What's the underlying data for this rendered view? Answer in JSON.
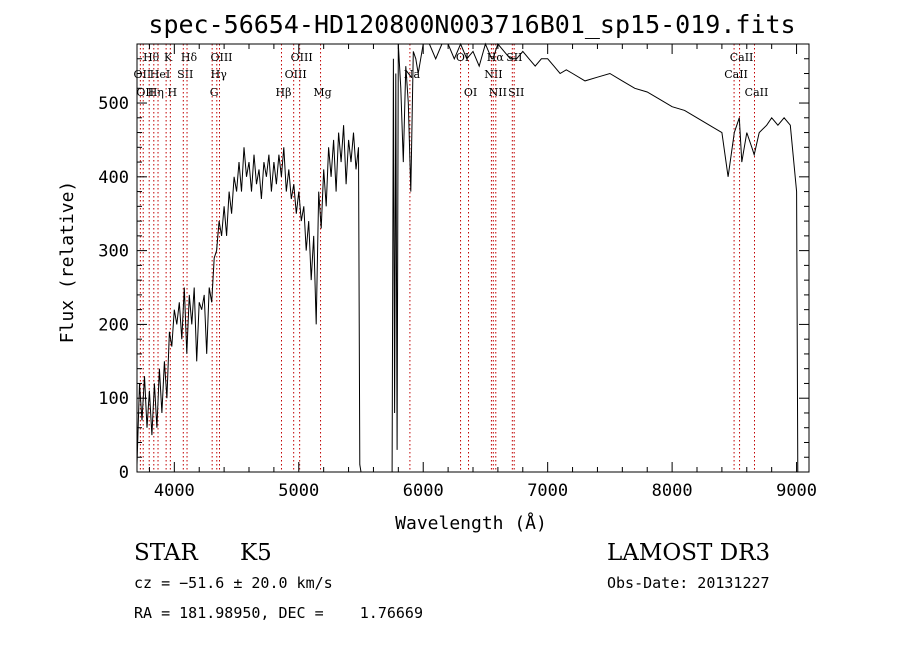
{
  "chart_data": {
    "type": "line",
    "title": "spec-56654-HD120800N003716B01_sp15-019.fits",
    "xlabel": "Wavelength (Å)",
    "ylabel": "Flux (relative)",
    "xlim": [
      3700,
      9100
    ],
    "ylim": [
      0,
      580
    ],
    "x_ticks": [
      4000,
      5000,
      6000,
      7000,
      8000,
      9000
    ],
    "y_ticks": [
      0,
      100,
      200,
      300,
      400,
      500
    ],
    "grid": false,
    "series": [
      {
        "x": [
          3700,
          3720,
          3740,
          3760,
          3780,
          3800,
          3820,
          3840,
          3860,
          3880,
          3900,
          3920,
          3940,
          3960,
          3980,
          4000,
          4020,
          4040,
          4060,
          4080,
          4100,
          4120,
          4140,
          4160,
          4180,
          4200,
          4220,
          4240,
          4260,
          4280,
          4300,
          4320,
          4340,
          4360,
          4380,
          4400,
          4420,
          4440,
          4460,
          4480,
          4500,
          4520,
          4540,
          4560,
          4580,
          4600,
          4620,
          4640,
          4660,
          4680,
          4700,
          4720,
          4740,
          4760,
          4780,
          4800,
          4820,
          4840,
          4860,
          4880,
          4900,
          4920,
          4940,
          4960,
          4980,
          5000,
          5020,
          5040,
          5060,
          5080,
          5100,
          5120,
          5140,
          5160,
          5180,
          5200,
          5220,
          5240,
          5260,
          5280,
          5300,
          5320,
          5340,
          5360,
          5380,
          5400,
          5420,
          5440,
          5460,
          5480,
          5490,
          5500,
          5750,
          5760,
          5770,
          5780,
          5790,
          5800,
          5820,
          5840,
          5860,
          5880,
          5900,
          5920,
          5940,
          5960,
          5980,
          6000,
          6050,
          6100,
          6150,
          6200,
          6250,
          6300,
          6350,
          6400,
          6450,
          6500,
          6550,
          6560,
          6600,
          6650,
          6700,
          6750,
          6800,
          6850,
          6900,
          6950,
          7000,
          7050,
          7100,
          7150,
          7200,
          7300,
          7400,
          7500,
          7600,
          7700,
          7800,
          7900,
          8000,
          8100,
          8200,
          8300,
          8400,
          8450,
          8500,
          8540,
          8560,
          8600,
          8640,
          8660,
          8700,
          8760,
          8800,
          8850,
          8900,
          8950,
          9000,
          9010
        ],
        "values": [
          10,
          120,
          70,
          130,
          60,
          110,
          50,
          120,
          60,
          140,
          80,
          150,
          100,
          190,
          170,
          220,
          200,
          230,
          180,
          250,
          160,
          240,
          200,
          250,
          150,
          230,
          220,
          240,
          160,
          250,
          230,
          290,
          300,
          340,
          320,
          360,
          320,
          380,
          350,
          400,
          380,
          420,
          380,
          440,
          400,
          420,
          380,
          430,
          390,
          410,
          370,
          420,
          400,
          430,
          380,
          420,
          390,
          430,
          400,
          440,
          380,
          410,
          370,
          390,
          350,
          380,
          340,
          360,
          300,
          340,
          260,
          320,
          200,
          380,
          330,
          410,
          360,
          440,
          400,
          450,
          380,
          460,
          420,
          470,
          390,
          450,
          420,
          460,
          410,
          440,
          10,
          0,
          0,
          560,
          80,
          540,
          30,
          580,
          520,
          420,
          550,
          500,
          380,
          570,
          560,
          540,
          560,
          580,
          600,
          560,
          580,
          590,
          560,
          580,
          560,
          570,
          550,
          590,
          560,
          560,
          580,
          570,
          560,
          560,
          570,
          560,
          550,
          560,
          560,
          550,
          540,
          545,
          540,
          530,
          535,
          540,
          530,
          520,
          515,
          505,
          495,
          490,
          480,
          470,
          460,
          400,
          460,
          480,
          420,
          460,
          440,
          430,
          460,
          470,
          480,
          470,
          480,
          470,
          380,
          0
        ]
      }
    ],
    "line_markers": [
      {
        "x": 3727,
        "label": "OII",
        "row": 2
      },
      {
        "x": 3750,
        "label": "OII",
        "row": 3
      },
      {
        "x": 3798,
        "label": "Hθ",
        "row": 1
      },
      {
        "x": 3835,
        "label": "Hη",
        "row": 3
      },
      {
        "x": 3869,
        "label": "HeI",
        "row": 2
      },
      {
        "x": 3934,
        "label": "K",
        "row": 1
      },
      {
        "x": 3968,
        "label": "H",
        "row": 3
      },
      {
        "x": 4072,
        "label": "SII",
        "row": 2
      },
      {
        "x": 4102,
        "label": "Hδ",
        "row": 1
      },
      {
        "x": 4304,
        "label": "G",
        "row": 3
      },
      {
        "x": 4341,
        "label": "Hγ",
        "row": 2
      },
      {
        "x": 4363,
        "label": "OIII",
        "row": 1
      },
      {
        "x": 4861,
        "label": "Hβ",
        "row": 3
      },
      {
        "x": 4959,
        "label": "OIII",
        "row": 2
      },
      {
        "x": 5007,
        "label": "OIII",
        "row": 1
      },
      {
        "x": 5175,
        "label": "Mg",
        "row": 3
      },
      {
        "x": 5893,
        "label": "Na",
        "row": 2
      },
      {
        "x": 6300,
        "label": "OI",
        "row": 1
      },
      {
        "x": 6364,
        "label": "OI",
        "row": 3
      },
      {
        "x": 6548,
        "label": "NII",
        "row": 2
      },
      {
        "x": 6563,
        "label": "Hα",
        "row": 1
      },
      {
        "x": 6583,
        "label": "NII",
        "row": 3
      },
      {
        "x": 6716,
        "label": "SII",
        "row": 1
      },
      {
        "x": 6731,
        "label": "SII",
        "row": 3
      },
      {
        "x": 8498,
        "label": "CaII",
        "row": 2
      },
      {
        "x": 8542,
        "label": "CaII",
        "row": 1
      },
      {
        "x": 8662,
        "label": "CaII",
        "row": 3
      }
    ]
  },
  "info": {
    "class_label": "STAR",
    "subclass": "K5",
    "survey": "LAMOST DR3",
    "cz": "cz = −51.6 ± 20.0 km/s",
    "obs_date": "Obs-Date: 20131227",
    "coords": "RA = 181.98950, DEC =    1.76669"
  }
}
